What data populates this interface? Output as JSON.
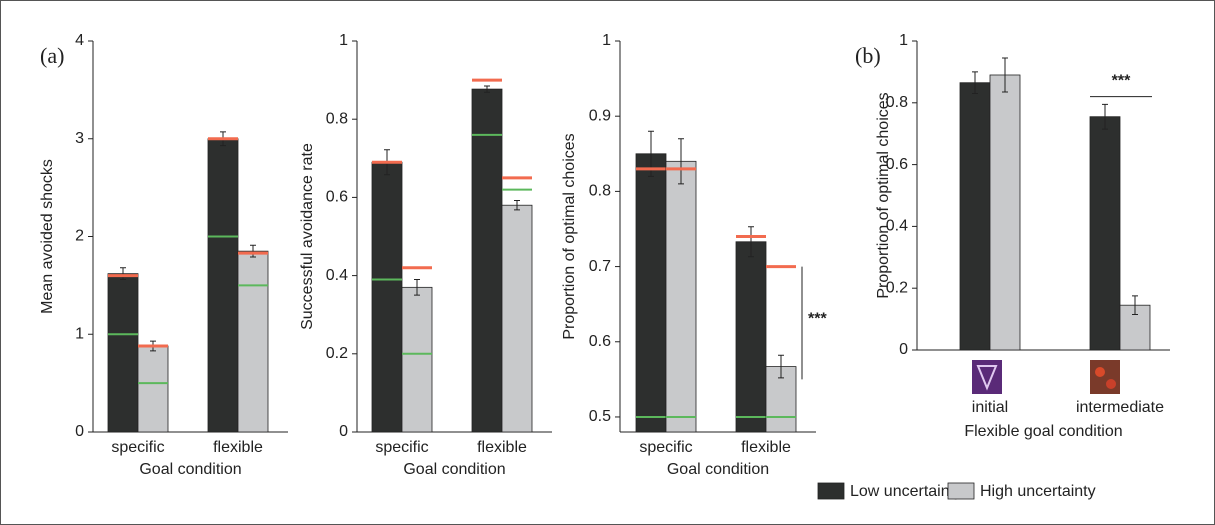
{
  "chart_data": [
    {
      "type": "bar",
      "panel_label": "(a)",
      "y_label": "Mean avoided shocks",
      "x_label": "Goal condition",
      "categories": [
        "specific",
        "flexible"
      ],
      "ylim": [
        0,
        4
      ],
      "yticks": [
        0,
        1,
        2,
        3,
        4
      ],
      "series": [
        {
          "name": "Low uncertainty",
          "color": "#2d2f2e",
          "values": [
            1.62,
            3.0
          ],
          "errors": [
            0.06,
            0.07
          ],
          "ref_marks": [
            {
              "color": "#f26b4f",
              "values": [
                1.6,
                3.0
              ]
            },
            {
              "color": "#5cb85c",
              "values": [
                1.0,
                2.0
              ]
            }
          ]
        },
        {
          "name": "High uncertainty",
          "color": "#c8c9cb",
          "values": [
            0.88,
            1.85
          ],
          "errors": [
            0.05,
            0.06
          ],
          "ref_marks": [
            {
              "color": "#f26b4f",
              "values": [
                0.88,
                1.83
              ]
            },
            {
              "color": "#5cb85c",
              "values": [
                0.5,
                1.5
              ]
            }
          ]
        }
      ]
    },
    {
      "type": "bar",
      "y_label": "Successful avoidance rate",
      "x_label": "Goal condition",
      "categories": [
        "specific",
        "flexible"
      ],
      "ylim": [
        0,
        1
      ],
      "yticks": [
        0,
        0.2,
        0.4,
        0.6,
        0.8,
        1
      ],
      "series": [
        {
          "color": "#2d2f2e",
          "values": [
            0.69,
            0.877
          ],
          "errors": [
            0.032,
            0.008
          ],
          "ref_marks": [
            {
              "color": "#f26b4f",
              "values": [
                0.69,
                0.9
              ]
            },
            {
              "color": "#5cb85c",
              "values": [
                0.39,
                0.76
              ]
            }
          ]
        },
        {
          "color": "#c8c9cb",
          "values": [
            0.37,
            0.58
          ],
          "errors": [
            0.02,
            0.012
          ],
          "ref_marks": [
            {
              "color": "#f26b4f",
              "values": [
                0.42,
                0.65
              ]
            },
            {
              "color": "#5cb85c",
              "values": [
                0.2,
                0.62
              ]
            }
          ]
        }
      ]
    },
    {
      "type": "bar",
      "y_label": "Proportion of optimal choices",
      "x_label": "Goal condition",
      "categories": [
        "specific",
        "flexible"
      ],
      "ylim": [
        0.48,
        1
      ],
      "yticks": [
        0.5,
        0.6,
        0.7,
        0.8,
        0.9,
        1
      ],
      "annotation": "***",
      "series": [
        {
          "color": "#2d2f2e",
          "values": [
            0.85,
            0.733
          ],
          "errors": [
            0.03,
            0.02
          ],
          "ref_marks": [
            {
              "color": "#f26b4f",
              "values": [
                0.83,
                0.74
              ]
            },
            {
              "color": "#5cb85c",
              "values": [
                0.5,
                0.5
              ]
            }
          ]
        },
        {
          "color": "#c8c9cb",
          "values": [
            0.84,
            0.567
          ],
          "errors": [
            0.03,
            0.015
          ],
          "ref_marks": [
            {
              "color": "#f26b4f",
              "values": [
                0.83,
                0.7
              ]
            },
            {
              "color": "#5cb85c",
              "values": [
                0.5,
                0.5
              ]
            }
          ]
        }
      ]
    },
    {
      "type": "bar",
      "panel_label": "(b)",
      "y_label": "Proportion of optimal choices",
      "x_label": "Flexible goal condition",
      "categories": [
        "initial",
        "intermediate"
      ],
      "ylim": [
        0,
        1
      ],
      "yticks": [
        0,
        0.2,
        0.4,
        0.6,
        0.8,
        1
      ],
      "annotation": "***",
      "series": [
        {
          "color": "#2d2f2e",
          "values": [
            0.865,
            0.755
          ],
          "errors": [
            0.035,
            0.04
          ]
        },
        {
          "color": "#c8c9cb",
          "values": [
            0.89,
            0.145
          ],
          "errors": [
            0.055,
            0.03
          ]
        }
      ]
    }
  ]
}
